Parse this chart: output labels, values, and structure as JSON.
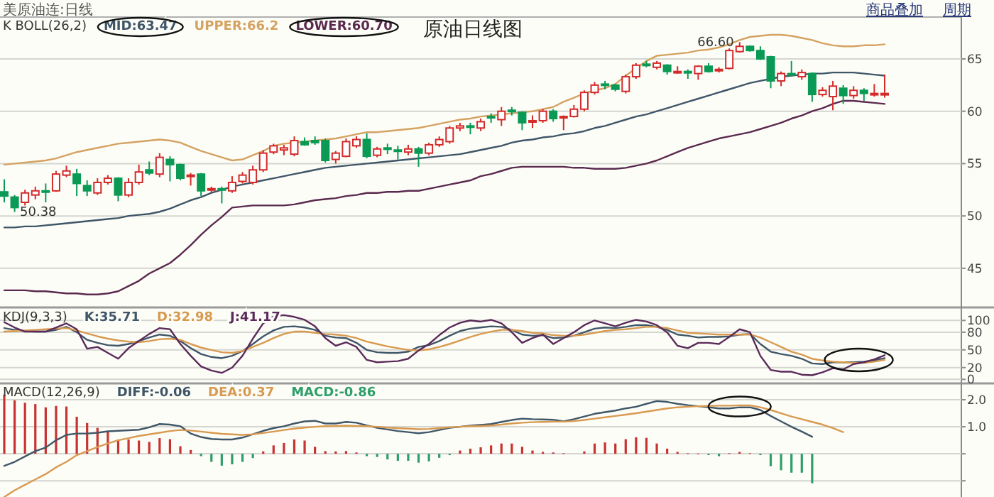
{
  "chart_data": [
    {
      "type": "candlestick",
      "title": "原油日线图",
      "subtitle": "K  BOLL(26,2)",
      "legend": "top left",
      "grid": "y",
      "tick_labels": "y",
      "annotations": [
        "美原油连:日线",
        "商品叠加",
        "周期",
        {
          "text": "66.60",
          "y": 66.6
        },
        "50.38"
      ],
      "categories": [
        null,
        null,
        null,
        null,
        null,
        null,
        null,
        null,
        null,
        null,
        null,
        null,
        null,
        null,
        null,
        null,
        null,
        null,
        null,
        null,
        null,
        null,
        null,
        null,
        null,
        null,
        null,
        null,
        null,
        null,
        null,
        null,
        null,
        null,
        null,
        null,
        null,
        null,
        null,
        null,
        null,
        null,
        null,
        null,
        null,
        null,
        null,
        null,
        null,
        null,
        null,
        null,
        null,
        null,
        null,
        null,
        null,
        null,
        null,
        null,
        null,
        null,
        null,
        null,
        null,
        null,
        null,
        null,
        null,
        null,
        null,
        null,
        null,
        null,
        null,
        null,
        null,
        null,
        null,
        null,
        null,
        null,
        null,
        null,
        null,
        null
      ],
      "ylim": [
        41.6,
        69
      ],
      "yticks": [
        45,
        50,
        55,
        60,
        65
      ],
      "ohlc": [
        [
          52.3,
          53.5,
          51.3,
          51.9
        ],
        [
          51.8,
          52.0,
          50.38,
          50.8
        ],
        [
          51.3,
          52.5,
          51.0,
          52.2
        ],
        [
          52.0,
          52.8,
          51.6,
          52.4
        ],
        [
          52.4,
          53.1,
          51.3,
          52.3
        ],
        [
          52.4,
          54.3,
          52.3,
          54.0
        ],
        [
          53.9,
          54.8,
          53.7,
          54.3
        ],
        [
          54.0,
          54.5,
          51.9,
          53.1
        ],
        [
          52.9,
          53.4,
          51.9,
          52.4
        ],
        [
          52.2,
          53.6,
          52.0,
          53.2
        ],
        [
          53.2,
          53.9,
          53.0,
          53.6
        ],
        [
          53.6,
          53.7,
          51.4,
          52.0
        ],
        [
          52.0,
          53.6,
          51.8,
          53.2
        ],
        [
          53.2,
          54.9,
          53.0,
          54.2
        ],
        [
          54.4,
          55.2,
          53.9,
          54.1
        ],
        [
          54.0,
          56.0,
          53.7,
          55.6
        ],
        [
          55.4,
          55.7,
          53.3,
          54.9
        ],
        [
          54.9,
          55.0,
          53.4,
          53.6
        ],
        [
          53.8,
          54.1,
          52.9,
          53.9
        ],
        [
          54.0,
          54.1,
          51.9,
          52.4
        ],
        [
          52.5,
          52.8,
          52.2,
          52.6
        ],
        [
          52.6,
          52.8,
          51.2,
          52.5
        ],
        [
          52.4,
          53.8,
          52.2,
          53.2
        ],
        [
          53.3,
          54.2,
          53.1,
          53.9
        ],
        [
          53.2,
          54.8,
          53.0,
          54.4
        ],
        [
          54.4,
          56.3,
          54.2,
          56.0
        ],
        [
          56.1,
          56.9,
          55.9,
          56.7
        ],
        [
          56.3,
          56.8,
          55.8,
          56.5
        ],
        [
          55.9,
          57.6,
          55.7,
          57.2
        ],
        [
          57.1,
          57.5,
          56.7,
          56.8
        ],
        [
          57.2,
          57.6,
          56.8,
          57.0
        ],
        [
          57.2,
          57.4,
          55.1,
          55.3
        ],
        [
          55.4,
          56.2,
          55.0,
          56.0
        ],
        [
          55.7,
          57.4,
          55.6,
          57.1
        ],
        [
          56.7,
          57.6,
          56.5,
          57.3
        ],
        [
          57.3,
          57.9,
          55.5,
          55.7
        ],
        [
          55.8,
          56.6,
          55.6,
          56.4
        ],
        [
          56.5,
          56.9,
          55.9,
          56.4
        ],
        [
          56.3,
          56.7,
          55.4,
          56.2
        ],
        [
          56.1,
          56.8,
          55.8,
          56.4
        ],
        [
          56.4,
          56.6,
          54.7,
          56.0
        ],
        [
          56.0,
          57.0,
          55.8,
          56.8
        ],
        [
          56.8,
          57.6,
          56.6,
          57.3
        ],
        [
          57.1,
          58.6,
          56.9,
          58.4
        ],
        [
          58.4,
          58.9,
          58.1,
          58.6
        ],
        [
          58.6,
          58.9,
          57.8,
          58.5
        ],
        [
          58.4,
          59.3,
          58.1,
          59.0
        ],
        [
          59.5,
          59.8,
          58.9,
          59.4
        ],
        [
          59.2,
          60.4,
          58.6,
          60.0
        ],
        [
          60.1,
          60.4,
          59.6,
          60.0
        ],
        [
          59.9,
          60.0,
          58.2,
          58.9
        ],
        [
          59.0,
          59.6,
          58.4,
          59.1
        ],
        [
          59.1,
          60.2,
          58.9,
          60.0
        ],
        [
          60.0,
          60.2,
          59.0,
          59.3
        ],
        [
          59.4,
          59.6,
          58.2,
          59.5
        ],
        [
          59.5,
          60.6,
          59.4,
          60.2
        ],
        [
          60.2,
          62.0,
          60.0,
          61.8
        ],
        [
          61.8,
          62.8,
          61.6,
          62.5
        ],
        [
          62.6,
          62.9,
          62.1,
          62.5
        ],
        [
          62.5,
          62.6,
          61.9,
          62.1
        ],
        [
          61.9,
          63.5,
          61.7,
          63.3
        ],
        [
          63.3,
          64.6,
          63.1,
          64.4
        ],
        [
          64.5,
          64.8,
          64.2,
          64.4
        ],
        [
          64.2,
          64.8,
          64.0,
          64.6
        ],
        [
          64.4,
          64.5,
          63.5,
          63.8
        ],
        [
          63.7,
          64.3,
          63.6,
          63.8
        ],
        [
          63.8,
          64.0,
          63.1,
          63.7
        ],
        [
          63.6,
          64.4,
          63.0,
          64.3
        ],
        [
          64.3,
          64.6,
          63.7,
          63.8
        ],
        [
          63.9,
          64.2,
          63.7,
          64.0
        ],
        [
          64.1,
          66.0,
          64.0,
          65.8
        ],
        [
          65.7,
          66.6,
          65.6,
          66.2
        ],
        [
          66.2,
          66.3,
          65.7,
          65.8
        ],
        [
          65.8,
          66.2,
          64.9,
          65.0
        ],
        [
          65.2,
          65.3,
          62.2,
          62.9
        ],
        [
          62.9,
          63.8,
          62.4,
          63.6
        ],
        [
          63.6,
          64.8,
          63.3,
          63.5
        ],
        [
          63.3,
          64.0,
          63.0,
          63.7
        ],
        [
          63.6,
          63.7,
          60.9,
          61.6
        ],
        [
          61.6,
          62.3,
          61.4,
          62.0
        ],
        [
          61.4,
          62.9,
          60.1,
          62.4
        ],
        [
          62.2,
          62.5,
          60.7,
          61.5
        ],
        [
          61.5,
          62.4,
          61.2,
          62.0
        ],
        [
          62.0,
          62.2,
          61.0,
          61.7
        ],
        [
          61.7,
          62.6,
          61.4,
          61.7
        ],
        [
          61.6,
          63.5,
          61.3,
          61.7
        ]
      ],
      "colors": [
        "#0a9a55",
        "#0a9a55",
        "#d42a2a",
        "#d42a2a",
        "#0a9a55",
        "#d42a2a",
        "#d42a2a",
        "#0a9a55",
        "#0a9a55",
        "#d42a2a",
        "#d42a2a",
        "#0a9a55",
        "#d42a2a",
        "#d42a2a",
        "#0a9a55",
        "#d42a2a",
        "#0a9a55",
        "#0a9a55",
        "#d42a2a",
        "#0a9a55",
        "#d42a2a",
        "#0a9a55",
        "#d42a2a",
        "#d42a2a",
        "#d42a2a",
        "#d42a2a",
        "#d42a2a",
        "#d42a2a",
        "#d42a2a",
        "#0a9a55",
        "#0a9a55",
        "#0a9a55",
        "#d42a2a",
        "#d42a2a",
        "#d42a2a",
        "#0a9a55",
        "#d42a2a",
        "#0a9a55",
        "#0a9a55",
        "#d42a2a",
        "#0a9a55",
        "#d42a2a",
        "#d42a2a",
        "#d42a2a",
        "#d42a2a",
        "#0a9a55",
        "#d42a2a",
        "#0a9a55",
        "#d42a2a",
        "#0a9a55",
        "#0a9a55",
        "#d42a2a",
        "#d42a2a",
        "#0a9a55",
        "#d42a2a",
        "#d42a2a",
        "#d42a2a",
        "#d42a2a",
        "#0a9a55",
        "#0a9a55",
        "#d42a2a",
        "#d42a2a",
        "#0a9a55",
        "#d42a2a",
        "#0a9a55",
        "#d42a2a",
        "#0a9a55",
        "#d42a2a",
        "#0a9a55",
        "#d42a2a",
        "#d42a2a",
        "#d42a2a",
        "#0a9a55",
        "#0a9a55",
        "#0a9a55",
        "#d42a2a",
        "#0a9a55",
        "#d42a2a",
        "#0a9a55",
        "#d42a2a",
        "#d42a2a",
        "#0a9a55",
        "#d42a2a",
        "#0a9a55",
        "#d42a2a",
        "#d42a2a"
      ],
      "series": [
        {
          "type": "line",
          "name": "MID:63.47",
          "color": "#3f5668",
          "values": [
            48.9,
            48.9,
            49.0,
            49.0,
            49.1,
            49.2,
            49.3,
            49.4,
            49.5,
            49.6,
            49.7,
            49.8,
            50.0,
            50.1,
            50.2,
            50.4,
            50.7,
            51.1,
            51.5,
            51.8,
            52.2,
            52.5,
            52.8,
            53.0,
            53.2,
            53.4,
            53.6,
            53.8,
            54.0,
            54.2,
            54.4,
            54.6,
            54.7,
            54.8,
            54.9,
            55.0,
            55.1,
            55.2,
            55.3,
            55.4,
            55.5,
            55.6,
            55.7,
            55.8,
            55.9,
            56.1,
            56.3,
            56.5,
            56.7,
            57.0,
            57.2,
            57.3,
            57.5,
            57.6,
            57.8,
            57.9,
            58.1,
            58.4,
            58.6,
            58.9,
            59.2,
            59.5,
            59.7,
            60.0,
            60.3,
            60.6,
            60.9,
            61.2,
            61.5,
            61.8,
            62.1,
            62.4,
            62.7,
            62.9,
            63.1,
            63.3,
            63.4,
            63.5,
            63.6,
            63.6,
            63.7,
            63.7,
            63.7,
            63.6,
            63.5,
            63.4
          ]
        },
        {
          "type": "line",
          "name": "UPPER:66.2",
          "color": "#d4a262",
          "values": [
            54.9,
            55.0,
            55.1,
            55.2,
            55.3,
            55.5,
            55.8,
            56.1,
            56.3,
            56.5,
            56.7,
            56.9,
            57.0,
            57.1,
            57.2,
            57.3,
            57.2,
            57.0,
            56.6,
            56.2,
            55.9,
            55.6,
            55.3,
            55.4,
            55.8,
            56.2,
            56.7,
            56.9,
            57.0,
            57.1,
            57.2,
            57.3,
            57.4,
            57.6,
            57.8,
            58.0,
            58.0,
            58.1,
            58.2,
            58.3,
            58.4,
            58.6,
            58.8,
            59.0,
            59.2,
            59.3,
            59.5,
            59.6,
            59.7,
            59.8,
            59.9,
            60.0,
            60.2,
            60.4,
            60.9,
            61.3,
            61.7,
            62.0,
            62.2,
            62.6,
            63.4,
            64.1,
            64.8,
            65.3,
            65.4,
            65.5,
            65.6,
            65.8,
            65.9,
            66.1,
            66.4,
            66.8,
            67.1,
            67.2,
            67.3,
            67.3,
            67.2,
            67.0,
            66.8,
            66.5,
            66.3,
            66.2,
            66.2,
            66.3,
            66.3,
            66.4
          ]
        },
        {
          "type": "line",
          "name": "LOWER:60.70",
          "color": "#5a2a4e",
          "values": [
            42.9,
            42.9,
            42.9,
            42.8,
            42.8,
            42.7,
            42.6,
            42.6,
            42.5,
            42.5,
            42.6,
            42.8,
            43.3,
            43.8,
            44.5,
            45.0,
            45.5,
            46.3,
            47.2,
            48.2,
            49.1,
            49.9,
            50.8,
            50.9,
            51.0,
            51.0,
            51.0,
            51.0,
            51.1,
            51.3,
            51.5,
            51.6,
            51.7,
            51.9,
            52.0,
            52.2,
            52.2,
            52.3,
            52.3,
            52.4,
            52.4,
            52.6,
            52.8,
            53.0,
            53.2,
            53.4,
            53.8,
            54.0,
            54.3,
            54.6,
            54.7,
            54.7,
            54.7,
            54.7,
            54.7,
            54.6,
            54.6,
            54.5,
            54.5,
            54.5,
            54.6,
            54.8,
            55.0,
            55.3,
            55.7,
            56.1,
            56.5,
            56.8,
            57.1,
            57.4,
            57.6,
            57.8,
            58.0,
            58.3,
            58.6,
            58.9,
            59.3,
            59.6,
            60.0,
            60.3,
            60.7,
            61.0,
            61.0,
            60.9,
            60.8,
            60.7
          ]
        }
      ]
    },
    {
      "type": "line",
      "subtitle": "KDJ(9,3,3)",
      "legend": "top left",
      "grid": "y",
      "tick_labels": "y",
      "categories": [
        null,
        null,
        null,
        null,
        null,
        null,
        null,
        null,
        null,
        null,
        null,
        null,
        null,
        null,
        null,
        null,
        null,
        null,
        null,
        null,
        null,
        null,
        null,
        null,
        null,
        null,
        null,
        null,
        null,
        null,
        null,
        null,
        null,
        null,
        null,
        null,
        null,
        null,
        null,
        null,
        null,
        null,
        null,
        null,
        null,
        null,
        null,
        null,
        null,
        null,
        null,
        null,
        null,
        null,
        null,
        null,
        null,
        null,
        null,
        null,
        null,
        null,
        null,
        null,
        null,
        null,
        null,
        null,
        null,
        null,
        null,
        null,
        null,
        null,
        null,
        null,
        null,
        null,
        null,
        null,
        null,
        null,
        null,
        null,
        null,
        null
      ],
      "ylim": [
        -2,
        116
      ],
      "yticks": [
        0,
        20,
        50,
        80,
        100
      ],
      "series": [
        {
          "name": "K:35.71",
          "color": "#3f5668",
          "values": [
            87,
            84,
            82,
            81,
            81,
            84,
            89,
            80,
            67,
            62,
            58,
            57,
            60,
            65,
            71,
            76,
            74,
            65,
            53,
            43,
            38,
            36,
            40,
            48,
            60,
            73,
            83,
            89,
            90,
            88,
            84,
            74,
            71,
            70,
            62,
            50,
            46,
            45,
            45,
            47,
            55,
            58,
            65,
            74,
            82,
            86,
            88,
            90,
            89,
            84,
            76,
            74,
            75,
            70,
            71,
            74,
            80,
            86,
            88,
            87,
            89,
            92,
            92,
            89,
            84,
            76,
            74,
            71,
            72,
            72,
            73,
            76,
            77,
            60,
            47,
            43,
            40,
            35,
            27,
            26,
            29,
            29,
            29,
            30,
            32,
            36
          ]
        },
        {
          "name": "D:32.98",
          "color": "#d89a50",
          "values": [
            81,
            82,
            83,
            84,
            85,
            86,
            87,
            83,
            78,
            73,
            69,
            66,
            64,
            63,
            65,
            68,
            69,
            67,
            60,
            54,
            50,
            46,
            45,
            48,
            55,
            62,
            70,
            77,
            81,
            81,
            79,
            77,
            76,
            74,
            70,
            64,
            60,
            56,
            53,
            50,
            49,
            51,
            55,
            60,
            66,
            72,
            77,
            81,
            84,
            84,
            82,
            79,
            78,
            75,
            74,
            74,
            76,
            79,
            82,
            84,
            85,
            87,
            89,
            89,
            87,
            83,
            79,
            78,
            77,
            76,
            76,
            76,
            76,
            71,
            63,
            55,
            47,
            42,
            35,
            32,
            30,
            29,
            28,
            28,
            30,
            33
          ]
        },
        {
          "name": "J:41.17",
          "color": "#5a2a5a",
          "values": [
            97,
            88,
            81,
            81,
            81,
            88,
            95,
            85,
            52,
            55,
            45,
            35,
            53,
            65,
            77,
            87,
            85,
            60,
            40,
            22,
            15,
            11,
            20,
            40,
            69,
            95,
            107,
            109,
            106,
            101,
            90,
            70,
            57,
            63,
            55,
            33,
            29,
            30,
            31,
            35,
            49,
            60,
            75,
            88,
            96,
            100,
            98,
            101,
            95,
            80,
            62,
            70,
            76,
            60,
            70,
            80,
            92,
            100,
            95,
            90,
            96,
            101,
            98,
            92,
            80,
            57,
            53,
            62,
            62,
            60,
            72,
            85,
            80,
            40,
            16,
            13,
            13,
            8,
            7,
            12,
            19,
            17,
            26,
            29,
            34,
            41
          ]
        }
      ]
    },
    {
      "type": "line",
      "subtitle": "MACD(12,26,9)",
      "legend": "top left",
      "grid": "y",
      "tick_labels": "y",
      "categories": [
        null,
        null,
        null,
        null,
        null,
        null,
        null,
        null,
        null,
        null,
        null,
        null,
        null,
        null,
        null,
        null,
        null,
        null,
        null,
        null,
        null,
        null,
        null,
        null,
        null,
        null,
        null,
        null,
        null,
        null,
        null,
        null,
        null,
        null,
        null,
        null,
        null,
        null,
        null,
        null,
        null,
        null,
        null,
        null,
        null,
        null,
        null,
        null,
        null,
        null,
        null,
        null,
        null,
        null,
        null,
        null,
        null,
        null,
        null,
        null,
        null,
        null,
        null,
        null,
        null,
        null,
        null,
        null,
        null,
        null,
        null,
        null,
        null,
        null,
        null,
        null,
        null,
        null,
        null,
        null,
        null,
        null,
        null,
        null,
        null,
        null
      ],
      "ylim": [
        -1.6,
        2.5
      ],
      "yticks": [
        {
          "value": -1,
          "label": null
        },
        {
          "value": 0,
          "label": null
        },
        {
          "value": 1,
          "label": "1.0"
        },
        {
          "value": 2,
          "label": "2.0"
        }
      ],
      "series": [
        {
          "name": "DIFF:-0.06",
          "color": "#3f5668",
          "values": [
            -0.45,
            -0.3,
            -0.1,
            0.1,
            0.23,
            0.5,
            0.7,
            0.75,
            0.75,
            0.78,
            0.83,
            0.85,
            0.87,
            0.89,
            0.98,
            1.1,
            1.08,
            1.02,
            0.75,
            0.62,
            0.55,
            0.53,
            0.53,
            0.6,
            0.72,
            0.85,
            0.95,
            1.02,
            1.12,
            1.2,
            1.22,
            1.12,
            1.12,
            1.18,
            1.15,
            1.05,
            0.96,
            0.9,
            0.84,
            0.8,
            0.76,
            0.8,
            0.88,
            0.96,
            1.0,
            1.04,
            1.07,
            1.1,
            1.18,
            1.25,
            1.3,
            1.28,
            1.27,
            1.26,
            1.2,
            1.28,
            1.38,
            1.48,
            1.54,
            1.6,
            1.68,
            1.74,
            1.85,
            1.95,
            1.92,
            1.85,
            1.8,
            1.76,
            1.72,
            1.68,
            1.68,
            1.72,
            1.72,
            1.62,
            1.4,
            1.2,
            1.0,
            0.82,
            0.63,
            null,
            null,
            null,
            null,
            null,
            null,
            null
          ]
        },
        {
          "name": "DEA:0.37",
          "color": "#d89a50",
          "values": [
            -1.6,
            -1.35,
            -1.15,
            -0.95,
            -0.75,
            -0.5,
            -0.3,
            -0.05,
            0.1,
            0.25,
            0.38,
            0.5,
            0.58,
            0.66,
            0.72,
            0.78,
            0.84,
            0.88,
            0.86,
            0.82,
            0.78,
            0.74,
            0.72,
            0.7,
            0.72,
            0.77,
            0.82,
            0.88,
            0.93,
            0.97,
            1.0,
            1.02,
            1.03,
            1.04,
            1.03,
            1.02,
            1.0,
            0.97,
            0.95,
            0.93,
            0.91,
            0.92,
            0.95,
            0.98,
            1.0,
            1.02,
            1.03,
            1.05,
            1.08,
            1.12,
            1.15,
            1.17,
            1.18,
            1.19,
            1.19,
            1.21,
            1.25,
            1.3,
            1.35,
            1.4,
            1.45,
            1.5,
            1.56,
            1.62,
            1.68,
            1.72,
            1.74,
            1.76,
            1.77,
            1.78,
            1.78,
            1.79,
            1.79,
            1.72,
            1.62,
            1.5,
            1.38,
            1.28,
            1.18,
            1.08,
            0.95,
            0.8,
            null,
            null,
            null,
            null
          ]
        },
        {
          "type": "bar",
          "name": "MACD:-0.86",
          "values": [
            2.19,
            1.98,
            1.89,
            1.84,
            1.72,
            1.77,
            1.75,
            1.37,
            1.14,
            0.96,
            0.84,
            0.53,
            0.53,
            0.49,
            0.44,
            0.58,
            0.54,
            0.28,
            0.14,
            -0.09,
            -0.3,
            -0.44,
            -0.39,
            -0.3,
            -0.16,
            0.09,
            0.31,
            0.4,
            0.53,
            0.49,
            0.26,
            0.1,
            0.09,
            0.1,
            0.05,
            -0.09,
            -0.12,
            -0.21,
            -0.26,
            -0.26,
            -0.33,
            -0.28,
            -0.15,
            -0.05,
            0.12,
            0.19,
            0.24,
            0.31,
            0.38,
            0.38,
            0.26,
            0.12,
            0.07,
            0.05,
            0.02,
            null,
            0.09,
            0.38,
            0.42,
            0.38,
            0.54,
            0.61,
            0.59,
            0.38,
            0.19,
            0.07,
            0.02,
            0.01,
            -0.05,
            -0.09,
            0.02,
            0.07,
            0.02,
            -0.05,
            -0.46,
            -0.61,
            -0.7,
            -0.7,
            -1.09,
            null,
            null,
            null,
            null,
            null,
            null,
            null
          ],
          "colors": [
            "#c83232",
            "#c83232",
            "#c83232",
            "#c83232",
            "#c83232",
            "#c83232",
            "#c83232",
            "#c83232",
            "#c83232",
            "#c83232",
            "#c83232",
            "#c83232",
            "#c83232",
            "#c83232",
            "#c83232",
            "#c83232",
            "#c83232",
            "#c83232",
            "#c83232",
            "#2e9e6a",
            "#2e9e6a",
            "#2e9e6a",
            "#2e9e6a",
            "#2e9e6a",
            "#2e9e6a",
            "#c83232",
            "#c83232",
            "#c83232",
            "#c83232",
            "#c83232",
            "#c83232",
            "#c83232",
            "#c83232",
            "#c83232",
            "#c83232",
            "#2e9e6a",
            "#2e9e6a",
            "#2e9e6a",
            "#2e9e6a",
            "#2e9e6a",
            "#2e9e6a",
            "#2e9e6a",
            "#2e9e6a",
            "#2e9e6a",
            "#c83232",
            "#c83232",
            "#c83232",
            "#c83232",
            "#c83232",
            "#c83232",
            "#c83232",
            "#c83232",
            "#c83232",
            "#c83232",
            "#c83232",
            null,
            "#c83232",
            "#c83232",
            "#c83232",
            "#c83232",
            "#c83232",
            "#c83232",
            "#c83232",
            "#c83232",
            "#c83232",
            "#c83232",
            "#c83232",
            "#c83232",
            "#2e9e6a",
            "#2e9e6a",
            "#c83232",
            "#c83232",
            "#c83232",
            "#2e9e6a",
            "#2e9e6a",
            "#2e9e6a",
            "#2e9e6a",
            "#2e9e6a",
            "#2e9e6a",
            null,
            null,
            null,
            null,
            null,
            null,
            null
          ]
        }
      ]
    }
  ]
}
